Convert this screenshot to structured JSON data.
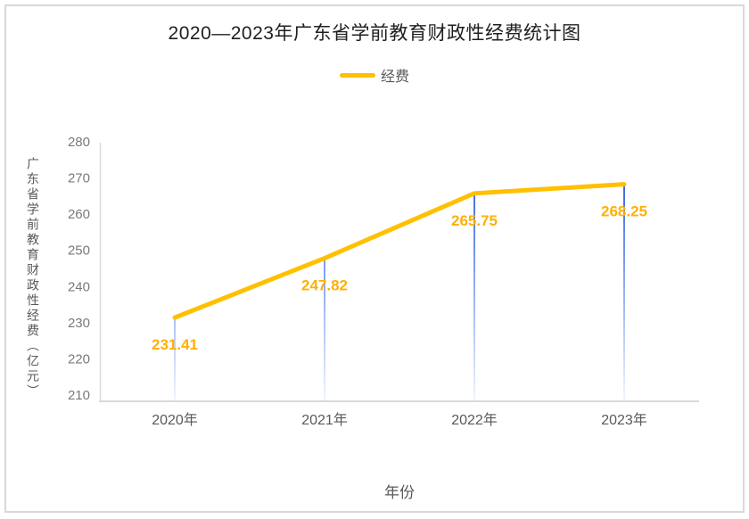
{
  "page": {
    "background": "#FFFFFF",
    "border_color": "#D8D8D8"
  },
  "chart_data": {
    "type": "line",
    "title": "2020—2023年广东省学前教育财政性经费统计图",
    "xlabel": "年份",
    "ylabel": "广东省学前教育财政性经费（亿元）",
    "categories": [
      "2020年",
      "2021年",
      "2022年",
      "2023年"
    ],
    "series": [
      {
        "name": "经费",
        "values": [
          231.41,
          247.82,
          265.75,
          268.25
        ],
        "color": "#FFC000"
      }
    ],
    "data_labels": [
      "231.41",
      "247.82",
      "265.75",
      "268.25"
    ],
    "ylim": [
      210,
      280
    ],
    "ytick_step": 10,
    "ytick_labels": [
      "210",
      "220",
      "230",
      "240",
      "250",
      "260",
      "270",
      "280"
    ],
    "grid": false,
    "legend_position": "top-center",
    "colors": {
      "series_line": "#FFC000",
      "data_label": "#FFB005",
      "drop_line_top": "#3A68E4",
      "drop_line_bottom": "#F3F7FD",
      "axis_line": "#D9D9D9",
      "ytick_label": "#7A7A7A",
      "xtick_label": "#595959",
      "axis_title": "#595959",
      "title": "#1F1F1F"
    }
  }
}
